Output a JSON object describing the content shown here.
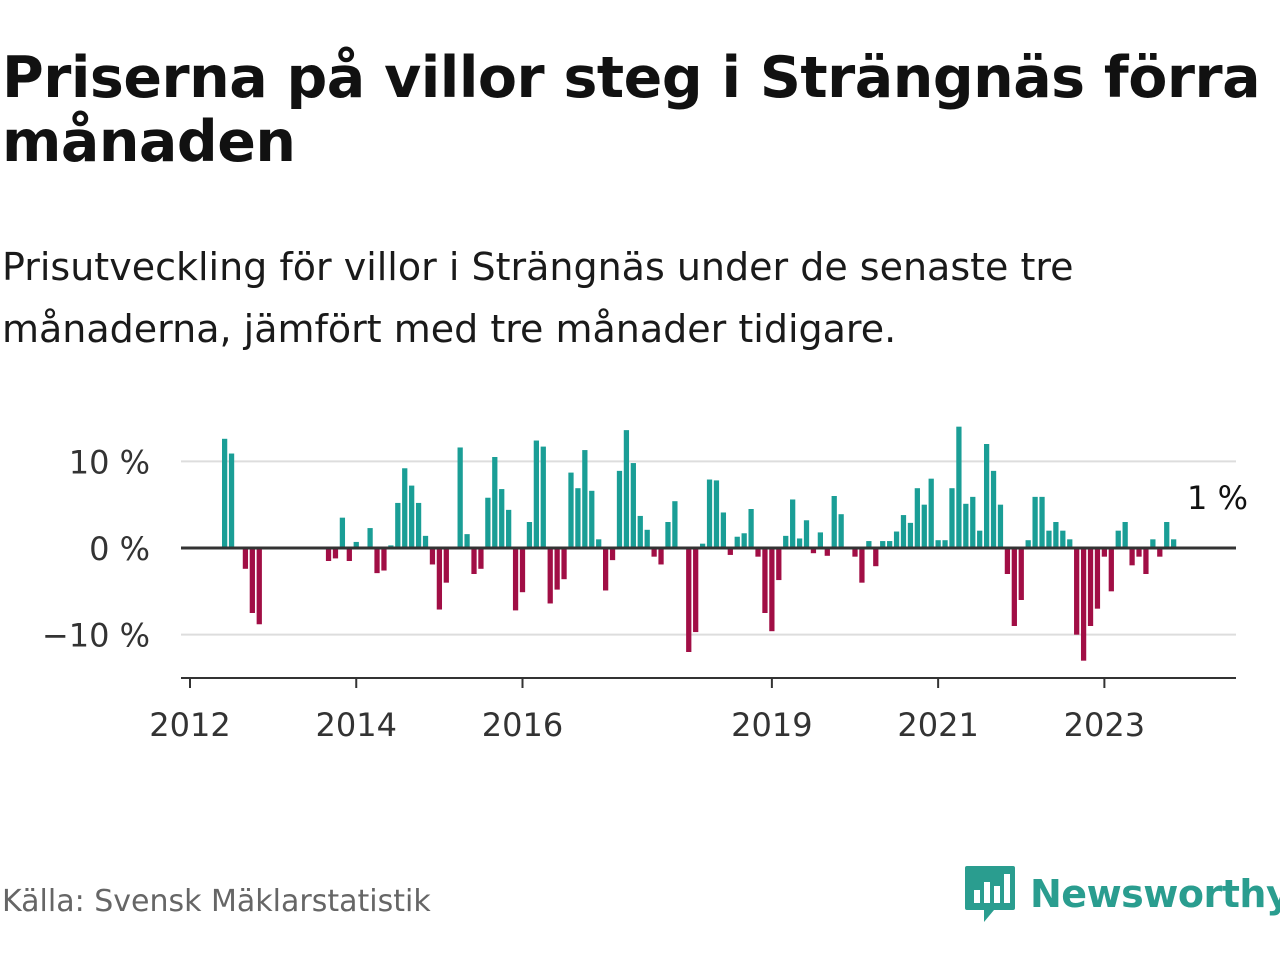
{
  "title": "Priserna på villor steg i Strängnäs förra månaden",
  "subtitle": "Prisutveckling för villor i Strängnäs under de senaste tre månaderna, jämfört med tre månader tidigare.",
  "source": "Källa: Svensk Mäklarstatistik",
  "brand": {
    "name": "Newsworthy",
    "color": "#2a9d8f",
    "icon": "newsworthy-logo-icon"
  },
  "colors": {
    "positive": "#1a9e96",
    "negative": "#a10e45",
    "grid": "#dddddd",
    "axis": "#333333"
  },
  "chart_data": {
    "type": "bar",
    "unit": "%",
    "ylim": [
      -15,
      15
    ],
    "yticks": [
      {
        "value": 10,
        "label": "10 %"
      },
      {
        "value": 0,
        "label": "0 %"
      },
      {
        "value": -10,
        "label": "−10 %"
      }
    ],
    "xlim": [
      "2012-01",
      "2024-08"
    ],
    "xticks": [
      {
        "x": "2012-01",
        "label": "2012"
      },
      {
        "x": "2014-01",
        "label": "2014"
      },
      {
        "x": "2016-01",
        "label": "2016"
      },
      {
        "x": "2019-01",
        "label": "2019"
      },
      {
        "x": "2021-01",
        "label": "2021"
      },
      {
        "x": "2023-01",
        "label": "2023"
      }
    ],
    "grid": true,
    "annotation": {
      "x": "2024-01",
      "text": "1 %"
    },
    "series": [
      {
        "points": [
          [
            "2012-06",
            12.6
          ],
          [
            "2012-07",
            10.9
          ],
          [
            "2012-09",
            -2.4
          ],
          [
            "2012-10",
            -7.5
          ],
          [
            "2012-11",
            -8.8
          ],
          [
            "2013-09",
            -1.5
          ],
          [
            "2013-10",
            -1.2
          ],
          [
            "2013-11",
            3.5
          ],
          [
            "2013-12",
            -1.5
          ],
          [
            "2014-01",
            0.7
          ],
          [
            "2014-03",
            2.3
          ],
          [
            "2014-04",
            -2.9
          ],
          [
            "2014-05",
            -2.6
          ],
          [
            "2014-06",
            0.3
          ],
          [
            "2014-07",
            5.2
          ],
          [
            "2014-08",
            9.2
          ],
          [
            "2014-09",
            7.2
          ],
          [
            "2014-10",
            5.2
          ],
          [
            "2014-11",
            1.4
          ],
          [
            "2014-12",
            -1.9
          ],
          [
            "2015-01",
            -7.1
          ],
          [
            "2015-02",
            -4.0
          ],
          [
            "2015-04",
            11.6
          ],
          [
            "2015-05",
            1.6
          ],
          [
            "2015-06",
            -3.0
          ],
          [
            "2015-07",
            -2.4
          ],
          [
            "2015-08",
            5.8
          ],
          [
            "2015-09",
            10.5
          ],
          [
            "2015-10",
            6.8
          ],
          [
            "2015-11",
            4.4
          ],
          [
            "2015-12",
            -7.2
          ],
          [
            "2016-01",
            -5.1
          ],
          [
            "2016-02",
            3.0
          ],
          [
            "2016-03",
            12.4
          ],
          [
            "2016-04",
            11.7
          ],
          [
            "2016-05",
            -6.4
          ],
          [
            "2016-06",
            -4.8
          ],
          [
            "2016-07",
            -3.6
          ],
          [
            "2016-08",
            8.7
          ],
          [
            "2016-09",
            6.9
          ],
          [
            "2016-10",
            11.3
          ],
          [
            "2016-11",
            6.6
          ],
          [
            "2016-12",
            1.0
          ],
          [
            "2017-01",
            -4.9
          ],
          [
            "2017-02",
            -1.4
          ],
          [
            "2017-03",
            8.9
          ],
          [
            "2017-04",
            13.6
          ],
          [
            "2017-05",
            9.8
          ],
          [
            "2017-06",
            3.7
          ],
          [
            "2017-07",
            2.1
          ],
          [
            "2017-08",
            -1.0
          ],
          [
            "2017-09",
            -1.9
          ],
          [
            "2017-10",
            3.0
          ],
          [
            "2017-11",
            5.4
          ],
          [
            "2018-01",
            -12.0
          ],
          [
            "2018-02",
            -9.7
          ],
          [
            "2018-03",
            0.5
          ],
          [
            "2018-04",
            7.9
          ],
          [
            "2018-05",
            7.8
          ],
          [
            "2018-06",
            4.1
          ],
          [
            "2018-07",
            -0.8
          ],
          [
            "2018-08",
            1.3
          ],
          [
            "2018-09",
            1.7
          ],
          [
            "2018-10",
            4.5
          ],
          [
            "2018-11",
            -1.0
          ],
          [
            "2018-12",
            -7.5
          ],
          [
            "2019-01",
            -9.6
          ],
          [
            "2019-02",
            -3.7
          ],
          [
            "2019-03",
            1.4
          ],
          [
            "2019-04",
            5.6
          ],
          [
            "2019-05",
            1.1
          ],
          [
            "2019-06",
            3.2
          ],
          [
            "2019-07",
            -0.6
          ],
          [
            "2019-08",
            1.8
          ],
          [
            "2019-09",
            -0.9
          ],
          [
            "2019-10",
            6.0
          ],
          [
            "2019-11",
            3.9
          ],
          [
            "2020-01",
            -1.0
          ],
          [
            "2020-02",
            -4.0
          ],
          [
            "2020-03",
            0.8
          ],
          [
            "2020-04",
            -2.1
          ],
          [
            "2020-05",
            0.8
          ],
          [
            "2020-06",
            0.8
          ],
          [
            "2020-07",
            1.9
          ],
          [
            "2020-08",
            3.8
          ],
          [
            "2020-09",
            2.9
          ],
          [
            "2020-10",
            6.9
          ],
          [
            "2020-11",
            5.0
          ],
          [
            "2020-12",
            8.0
          ],
          [
            "2021-01",
            0.9
          ],
          [
            "2021-02",
            0.9
          ],
          [
            "2021-03",
            6.9
          ],
          [
            "2021-04",
            14.0
          ],
          [
            "2021-05",
            5.1
          ],
          [
            "2021-06",
            5.9
          ],
          [
            "2021-07",
            2.0
          ],
          [
            "2021-08",
            12.0
          ],
          [
            "2021-09",
            8.9
          ],
          [
            "2021-10",
            5.0
          ],
          [
            "2021-11",
            -3.0
          ],
          [
            "2021-12",
            -9.0
          ],
          [
            "2022-01",
            -6.0
          ],
          [
            "2022-02",
            0.9
          ],
          [
            "2022-03",
            5.9
          ],
          [
            "2022-04",
            5.9
          ],
          [
            "2022-05",
            2.0
          ],
          [
            "2022-06",
            3.0
          ],
          [
            "2022-07",
            2.0
          ],
          [
            "2022-08",
            1.0
          ],
          [
            "2022-09",
            -10.0
          ],
          [
            "2022-10",
            -13.0
          ],
          [
            "2022-11",
            -9.0
          ],
          [
            "2022-12",
            -7.0
          ],
          [
            "2023-01",
            -1.0
          ],
          [
            "2023-02",
            -5.0
          ],
          [
            "2023-03",
            2.0
          ],
          [
            "2023-04",
            3.0
          ],
          [
            "2023-05",
            -2.0
          ],
          [
            "2023-06",
            -1.0
          ],
          [
            "2023-07",
            -3.0
          ],
          [
            "2023-08",
            1.0
          ],
          [
            "2023-09",
            -1.0
          ],
          [
            "2023-10",
            3.0
          ],
          [
            "2023-11",
            1.0
          ]
        ]
      }
    ]
  }
}
